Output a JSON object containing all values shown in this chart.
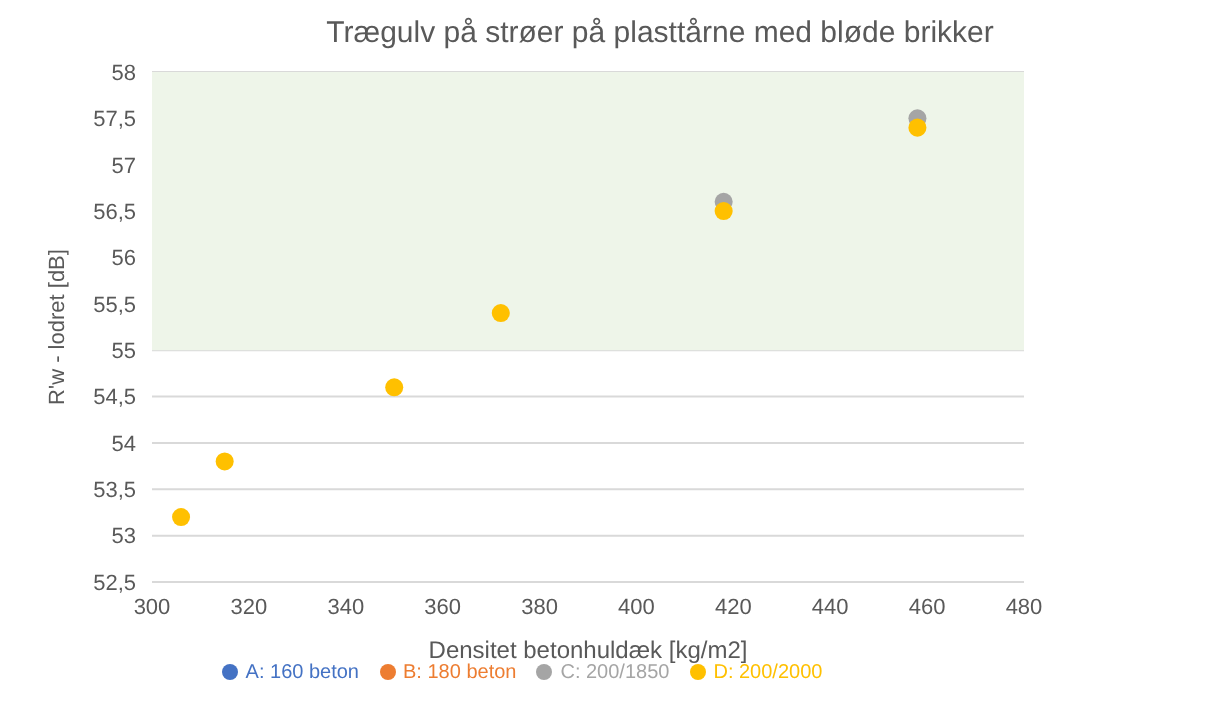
{
  "chart_data": {
    "type": "scatter",
    "title": "Trægulv på strøer på plasttårne med bløde brikker",
    "xlabel": "Densitet betonhuldæk [kg/m2]",
    "ylabel": "R'w - lodret [dB]",
    "x": [
      306,
      315,
      350,
      372,
      418,
      458
    ],
    "series": [
      {
        "name": "A: 160 beton",
        "color": "#4472c4",
        "values": [
          null,
          null,
          null,
          null,
          null,
          null
        ]
      },
      {
        "name": "B: 180 beton",
        "color": "#ed7d31",
        "values": [
          null,
          null,
          null,
          null,
          null,
          null
        ]
      },
      {
        "name": "C: 200/1850",
        "color": "#a5a5a5",
        "values": [
          null,
          null,
          null,
          null,
          56.6,
          57.5
        ]
      },
      {
        "name": "D: 200/2000",
        "color": "#ffc000",
        "values": [
          53.2,
          53.8,
          54.6,
          55.4,
          56.5,
          57.4
        ]
      }
    ],
    "xlim": [
      300,
      480
    ],
    "xticks": [
      300,
      320,
      340,
      360,
      380,
      400,
      420,
      440,
      460,
      480
    ],
    "ylim": [
      52.5,
      58
    ],
    "yticks": [
      {
        "value": 52.5,
        "label": "52,5"
      },
      53,
      {
        "value": 53.5,
        "label": "53,5"
      },
      54,
      {
        "value": 54.5,
        "label": "54,5"
      },
      55,
      {
        "value": 55.5,
        "label": "55,5"
      },
      56,
      {
        "value": 56.5,
        "label": "56,5"
      },
      57,
      {
        "value": 57.5,
        "label": "57,5"
      },
      58
    ],
    "bands": [
      {
        "axis": "y",
        "from": 55,
        "to": 58,
        "color": "#eef5e9"
      }
    ],
    "grid": "y",
    "legend": "bottom",
    "marker": "circle"
  }
}
